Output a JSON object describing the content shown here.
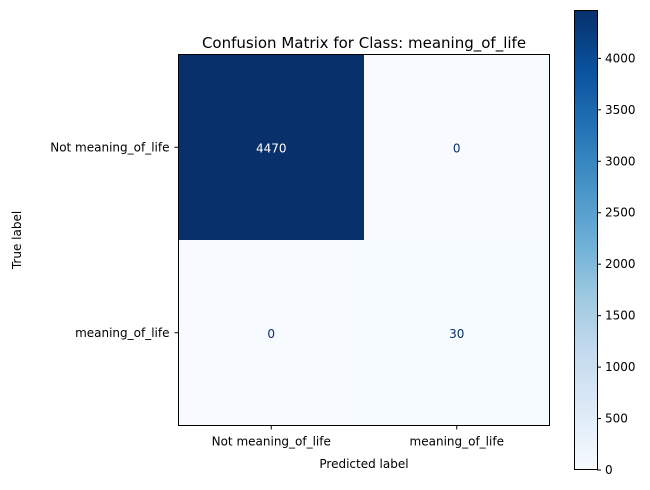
{
  "chart_data": {
    "type": "heatmap",
    "title": "Confusion Matrix for Class: meaning_of_life",
    "xlabel": "Predicted label",
    "ylabel": "True label",
    "x_categories": [
      "Not meaning_of_life",
      "meaning_of_life"
    ],
    "y_categories": [
      "Not meaning_of_life",
      "meaning_of_life"
    ],
    "values": [
      [
        4470,
        0
      ],
      [
        0,
        30
      ]
    ],
    "colormap": "Blues",
    "color_low": "#f7fbff",
    "color_high": "#08306b",
    "vmin": 0,
    "vmax": 4470,
    "colorbar_ticks": [
      0,
      500,
      1000,
      1500,
      2000,
      2500,
      3000,
      3500,
      4000
    ],
    "colorbar_tick_labels": [
      "0",
      "500",
      "1000",
      "1500",
      "2000",
      "2500",
      "3000",
      "3500",
      "4000"
    ]
  }
}
